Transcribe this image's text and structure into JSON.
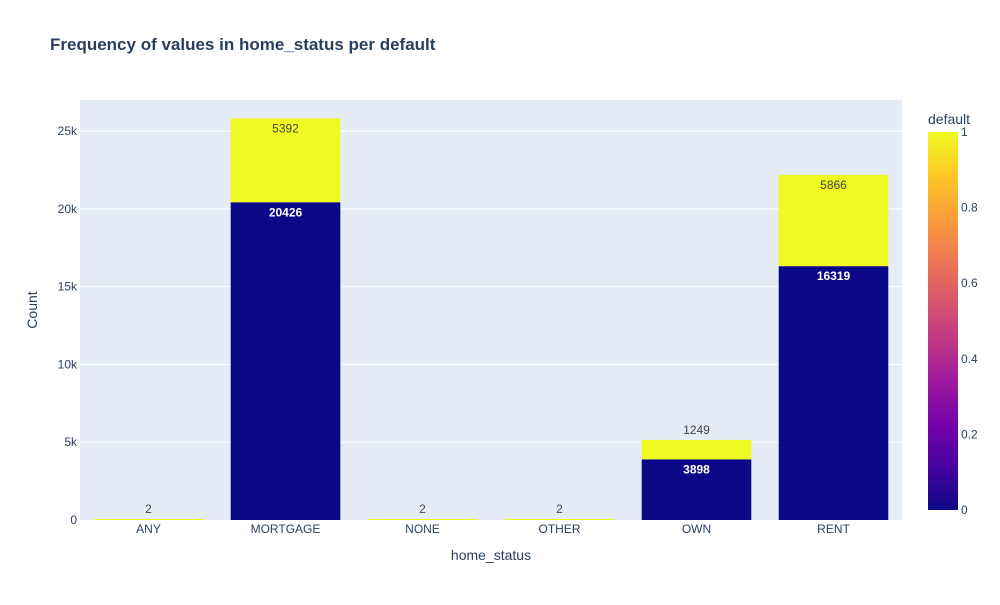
{
  "chart_data": {
    "type": "bar",
    "barmode": "stack",
    "title": "Frequency of values in home_status per default",
    "xlabel": "home_status",
    "ylabel": "Count",
    "categories": [
      "ANY",
      "MORTGAGE",
      "NONE",
      "OTHER",
      "OWN",
      "RENT"
    ],
    "series": [
      {
        "key": "0",
        "values": [
          0,
          20426,
          0,
          0,
          3898,
          16319
        ],
        "labels": [
          "",
          "20426",
          "",
          "",
          "3898",
          "16319"
        ],
        "color": "#0d0887"
      },
      {
        "key": "1",
        "values": [
          2,
          5392,
          2,
          2,
          1249,
          5866
        ],
        "labels": [
          "2",
          "5392",
          "2",
          "2",
          "1249",
          "5866"
        ],
        "color": "#f0f921"
      }
    ],
    "ylim": [
      0,
      27000
    ],
    "yticks": [
      0,
      5000,
      10000,
      15000,
      20000,
      25000
    ],
    "ytick_labels": [
      "0",
      "5k",
      "10k",
      "15k",
      "20k",
      "25k"
    ],
    "grid": true,
    "colorbar": {
      "title": "default",
      "range": [
        0,
        1
      ],
      "ticks": [
        0,
        0.2,
        0.4,
        0.6,
        0.8,
        1
      ],
      "tick_labels": [
        "0",
        "0.2",
        "0.4",
        "0.6",
        "0.8",
        "1"
      ],
      "colorscale": [
        "#0d0887",
        "#46039f",
        "#7201a8",
        "#9c179e",
        "#bd3786",
        "#d8576b",
        "#ed7953",
        "#fb9f3a",
        "#fdca26",
        "#f0f921"
      ]
    },
    "colors": {
      "plot_bg": "#e5ecf6",
      "grid": "#ffffff",
      "text": "#2a3f5f",
      "label_dark": "#444444",
      "label_light": "#ffffff"
    }
  }
}
